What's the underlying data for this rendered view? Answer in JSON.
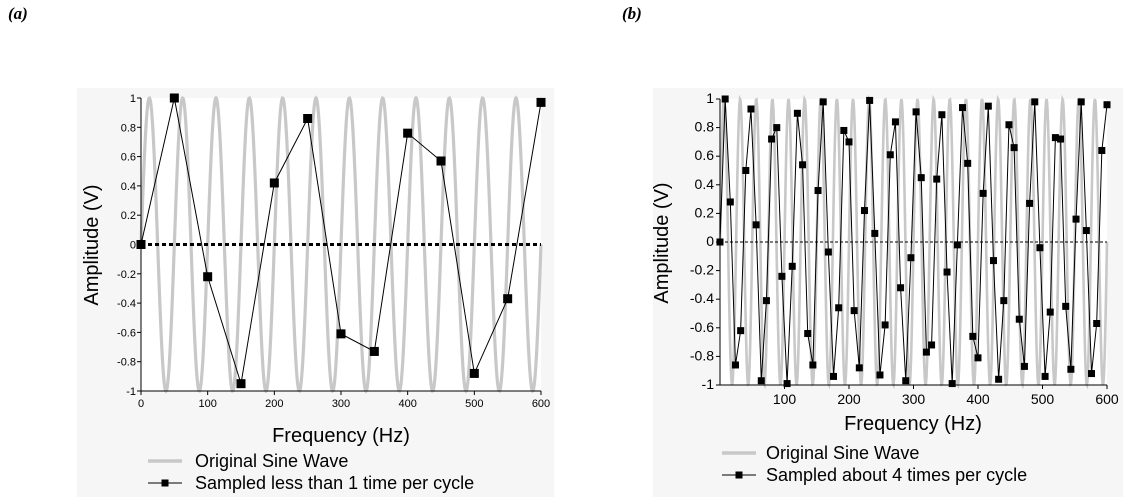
{
  "panels": [
    {
      "label": "(a)"
    },
    {
      "label": "(b)"
    }
  ],
  "chart_data": [
    {
      "type": "line",
      "panel": "(a)",
      "xlabel": "Frequency (Hz)",
      "ylabel": "Amplitude (V)",
      "xlim": [
        0,
        600
      ],
      "ylim": [
        -1,
        1
      ],
      "x_ticks": [
        0,
        100,
        200,
        300,
        400,
        500,
        600
      ],
      "y_ticks": [
        1,
        0.8,
        0.6,
        0.4,
        0.2,
        0,
        -0.2,
        -0.4,
        -0.6,
        -0.8,
        -1
      ],
      "grid": false,
      "legend_position": "bottom",
      "zero_line": "thick-dotted",
      "series": [
        {
          "name": "Original Sine Wave",
          "kind": "sine",
          "color": "#c8c8c8",
          "frequency_cycles_per_x": 0.02
        },
        {
          "name": "Sampled less than 1 time per cycle",
          "kind": "sampled",
          "color": "#000000",
          "x": [
            0,
            50,
            100,
            150,
            200,
            250,
            300,
            350,
            400,
            450,
            500,
            550,
            600
          ],
          "y": [
            0,
            1,
            -0.22,
            -0.95,
            0.42,
            0.86,
            -0.61,
            -0.73,
            0.76,
            0.57,
            -0.88,
            -0.37,
            0.97
          ]
        }
      ]
    },
    {
      "type": "line",
      "panel": "(b)",
      "xlabel": "Frequency (Hz)",
      "ylabel": "Amplitude (V)",
      "xlim": [
        0,
        600
      ],
      "ylim": [
        -1,
        1
      ],
      "x_ticks": [
        100,
        200,
        300,
        400,
        500,
        600
      ],
      "y_ticks": [
        1,
        0.8,
        0.6,
        0.4,
        0.2,
        0,
        -0.2,
        -0.4,
        -0.6,
        -0.8,
        -1
      ],
      "grid": false,
      "legend_position": "bottom",
      "zero_line": "thin-dashed",
      "series": [
        {
          "name": "Original Sine Wave",
          "kind": "sine",
          "color": "#c8c8c8",
          "frequency_cycles_per_x": 0.04
        },
        {
          "name": "Sampled about 4 times per cycle",
          "kind": "sampled",
          "color": "#000000",
          "x": [
            0,
            8,
            16,
            24,
            32,
            40,
            48,
            56,
            64,
            72,
            80,
            88,
            96,
            104,
            112,
            120,
            128,
            136,
            144,
            152,
            160,
            168,
            176,
            184,
            192,
            200,
            208,
            216,
            224,
            232,
            240,
            248,
            256,
            264,
            272,
            280,
            288,
            296,
            304,
            312,
            320,
            328,
            336,
            344,
            352,
            360,
            368,
            376,
            384,
            392,
            400,
            408,
            416,
            424,
            432,
            440,
            448,
            456,
            464,
            472,
            480,
            488,
            496,
            504,
            512,
            520,
            528,
            536,
            544,
            552,
            560,
            568,
            576,
            584,
            592,
            600
          ],
          "y": [
            0,
            1,
            0.28,
            -0.86,
            -0.62,
            0.5,
            0.93,
            0.12,
            -0.97,
            -0.41,
            0.72,
            0.8,
            -0.24,
            -0.99,
            -0.17,
            0.9,
            0.54,
            -0.64,
            -0.86,
            0.36,
            0.98,
            -0.07,
            -0.94,
            -0.46,
            0.78,
            0.7,
            -0.48,
            -0.88,
            0.22,
            0.99,
            0.06,
            -0.93,
            -0.58,
            0.61,
            0.84,
            -0.32,
            -0.97,
            -0.11,
            0.91,
            0.45,
            -0.77,
            -0.72,
            0.44,
            0.89,
            -0.21,
            -0.99,
            -0.02,
            0.94,
            0.55,
            -0.66,
            -0.81,
            0.34,
            0.95,
            -0.13,
            -0.96,
            -0.41,
            0.82,
            0.66,
            -0.54,
            -0.87,
            0.27,
            0.98,
            -0.04,
            -0.94,
            -0.49,
            0.73,
            0.72,
            -0.45,
            -0.89,
            0.16,
            0.98,
            0.08,
            -0.92,
            -0.57,
            0.64,
            0.96
          ]
        }
      ]
    }
  ]
}
